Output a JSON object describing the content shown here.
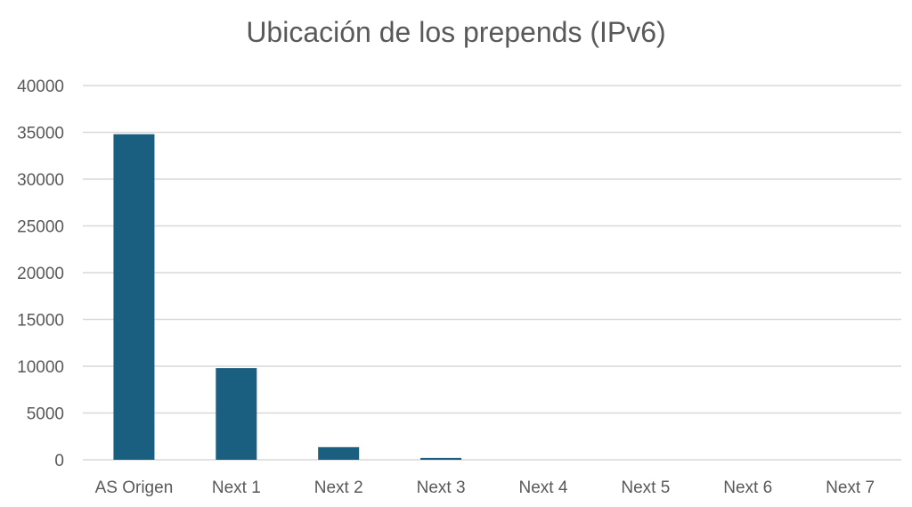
{
  "chart_data": {
    "type": "bar",
    "title": "Ubicación de los prepends (IPv6)",
    "xlabel": "",
    "ylabel": "",
    "categories": [
      "AS Origen",
      "Next 1",
      "Next 2",
      "Next 3",
      "Next 4",
      "Next 5",
      "Next 6",
      "Next 7"
    ],
    "values": [
      34800,
      9800,
      1350,
      200,
      0,
      0,
      0,
      0
    ],
    "ylim": [
      0,
      40000
    ],
    "yticks": [
      0,
      5000,
      10000,
      15000,
      20000,
      25000,
      30000,
      35000,
      40000
    ],
    "grid": true,
    "legend": "none",
    "bar_color": "#1a5e80",
    "grid_color": "#d9d9d9"
  }
}
